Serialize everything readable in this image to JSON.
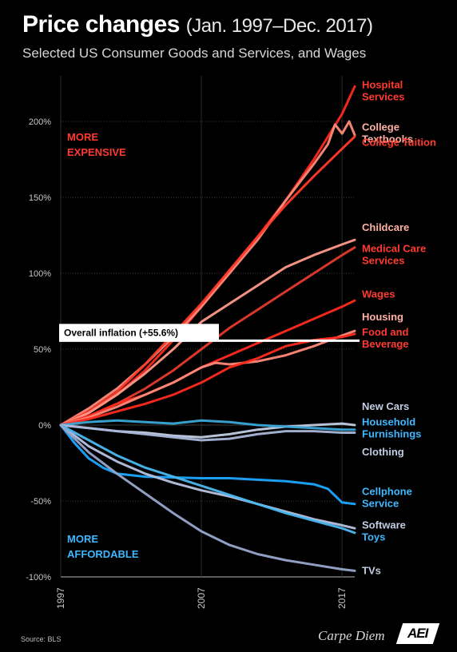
{
  "header": {
    "title": "Price changes",
    "title_range": "(Jan. 1997–Dec. 2017)",
    "subtitle": "Selected US Consumer Goods and Services, and Wages"
  },
  "footer": {
    "source": "Source:  BLS",
    "brand": "Carpe Diem",
    "logo_text": "AEI"
  },
  "colors": {
    "background": "#000000",
    "expensive_label": "#ff3b2f",
    "affordable_label": "#3fb8ff",
    "inflation_line": "#ffffff"
  },
  "chart_data": {
    "type": "line",
    "title": "Price changes (Jan. 1997–Dec. 2017)",
    "subtitle": "Selected US Consumer Goods and Services, and Wages",
    "xlabel": "",
    "ylabel": "",
    "xlim": [
      1997,
      2017.9
    ],
    "ylim": [
      -100,
      230
    ],
    "x_ticks": [
      1997,
      2007,
      2017
    ],
    "x_tick_labels": [
      "1997",
      "2007",
      "2017"
    ],
    "y_ticks": [
      -100,
      -50,
      0,
      50,
      100,
      150,
      200
    ],
    "y_tick_labels": [
      "-100%",
      "-50%",
      "0%",
      "50%",
      "100%",
      "150%",
      "200%"
    ],
    "grid": true,
    "annotations": {
      "more_expensive": [
        "MORE",
        "EXPENSIVE"
      ],
      "more_affordable": [
        "MORE",
        "AFFORDABLE"
      ]
    },
    "reference_line": {
      "label": "Overall inflation (+55.6%)",
      "value": 55.6
    },
    "series": [
      {
        "name": "Hospital Services",
        "label_lines": [
          "Hospital",
          "Services"
        ],
        "color": "#ff2a1f",
        "label_color": "#ff3b2f",
        "label_at": 220,
        "x": [
          1997,
          1999,
          2001,
          2003,
          2005,
          2007,
          2009,
          2011,
          2013,
          2015,
          2016,
          2017,
          2017.9
        ],
        "values": [
          0,
          8,
          20,
          36,
          56,
          78,
          102,
          124,
          148,
          175,
          190,
          205,
          223
        ]
      },
      {
        "name": "College Textbooks",
        "label_lines": [
          "College",
          "Textbooks"
        ],
        "color": "#ff8a7a",
        "label_color": "#ffb2a4",
        "label_at": 192,
        "x": [
          1997,
          1999,
          2001,
          2003,
          2005,
          2007,
          2009,
          2011,
          2013,
          2015,
          2016,
          2016.5,
          2017,
          2017.5,
          2017.9
        ],
        "values": [
          0,
          11,
          24,
          40,
          58,
          78,
          100,
          122,
          148,
          172,
          185,
          198,
          192,
          200,
          191
        ]
      },
      {
        "name": "College Tuition",
        "label_lines": [
          "College Tuition"
        ],
        "color": "#ff3a2a",
        "label_color": "#ff3b2f",
        "label_at": 186,
        "x": [
          1997,
          1999,
          2001,
          2003,
          2005,
          2007,
          2009,
          2011,
          2013,
          2015,
          2017,
          2017.9
        ],
        "values": [
          0,
          9,
          22,
          40,
          60,
          80,
          102,
          124,
          145,
          164,
          182,
          190
        ]
      },
      {
        "name": "Childcare",
        "label_lines": [
          "Childcare"
        ],
        "color": "#ff9a8a",
        "label_color": "#ffb2a4",
        "label_at": 130,
        "x": [
          1997,
          1999,
          2001,
          2003,
          2005,
          2007,
          2009,
          2011,
          2013,
          2015,
          2017,
          2017.9
        ],
        "values": [
          0,
          8,
          20,
          34,
          50,
          68,
          80,
          92,
          104,
          112,
          119,
          122
        ]
      },
      {
        "name": "Medical Care Services",
        "label_lines": [
          "Medical Care",
          "Services"
        ],
        "color": "#e53a2e",
        "label_color": "#ff3b2f",
        "label_at": 112,
        "x": [
          1997,
          1999,
          2001,
          2003,
          2005,
          2007,
          2009,
          2011,
          2013,
          2015,
          2017,
          2017.9
        ],
        "values": [
          0,
          6,
          14,
          24,
          36,
          50,
          64,
          76,
          88,
          100,
          112,
          117
        ]
      },
      {
        "name": "Wages",
        "label_lines": [
          "Wages"
        ],
        "color": "#ff2a1f",
        "label_color": "#ff3b2f",
        "label_at": 86,
        "x": [
          1997,
          1999,
          2001,
          2003,
          2005,
          2007,
          2009,
          2011,
          2013,
          2015,
          2017,
          2017.9
        ],
        "values": [
          0,
          6,
          14,
          20,
          28,
          38,
          46,
          54,
          62,
          70,
          78,
          82
        ]
      },
      {
        "name": "Housing",
        "label_lines": [
          "Housing"
        ],
        "color": "#ff8a7a",
        "label_color": "#ffb2a4",
        "label_at": 71,
        "x": [
          1997,
          1999,
          2001,
          2003,
          2005,
          2007,
          2008,
          2009,
          2011,
          2013,
          2015,
          2017,
          2017.9
        ],
        "values": [
          0,
          5,
          12,
          20,
          28,
          38,
          41,
          40,
          42,
          46,
          52,
          59,
          62
        ]
      },
      {
        "name": "Food and Beverage",
        "label_lines": [
          "Food and",
          "Beverage"
        ],
        "color": "#ff2a1f",
        "label_color": "#ff3b2f",
        "label_at": 57,
        "x": [
          1997,
          1999,
          2001,
          2003,
          2005,
          2007,
          2009,
          2011,
          2013,
          2015,
          2017,
          2017.9
        ],
        "values": [
          0,
          4,
          9,
          14,
          20,
          28,
          38,
          44,
          52,
          56,
          58,
          60
        ]
      },
      {
        "name": "New Cars",
        "label_lines": [
          "New Cars"
        ],
        "color": "#c2cde3",
        "label_color": "#c2cde3",
        "label_at": 12,
        "x": [
          1997,
          1999,
          2001,
          2003,
          2005,
          2007,
          2009,
          2011,
          2013,
          2015,
          2017,
          2017.9
        ],
        "values": [
          0,
          -2,
          -4,
          -5,
          -7,
          -8,
          -6,
          -3,
          -1,
          0,
          1,
          0
        ]
      },
      {
        "name": "Household Furnishings",
        "label_lines": [
          "Household",
          "Furnishings"
        ],
        "color": "#3aa8d8",
        "label_color": "#3fb8ff",
        "label_at": -2,
        "x": [
          1997,
          1999,
          2001,
          2003,
          2005,
          2007,
          2009,
          2011,
          2013,
          2015,
          2017,
          2017.9
        ],
        "values": [
          0,
          2,
          3,
          2,
          1,
          3,
          2,
          0,
          -1,
          -2,
          -3,
          -3
        ]
      },
      {
        "name": "Clothing",
        "label_lines": [
          "Clothing"
        ],
        "color": "#a9b6d8",
        "label_color": "#c2cde3",
        "label_at": -18,
        "x": [
          1997,
          1999,
          2001,
          2003,
          2005,
          2007,
          2009,
          2011,
          2013,
          2015,
          2017,
          2017.9
        ],
        "values": [
          0,
          -2,
          -4,
          -6,
          -8,
          -10,
          -9,
          -6,
          -4,
          -4,
          -5,
          -5
        ]
      },
      {
        "name": "Cellphone Service",
        "label_lines": [
          "Cellphone",
          "Service"
        ],
        "color": "#1ea6ff",
        "label_color": "#3fb8ff",
        "label_at": -48,
        "x": [
          1997,
          1998,
          1999,
          2000,
          2001,
          2003,
          2005,
          2007,
          2009,
          2011,
          2013,
          2015,
          2016,
          2017,
          2017.9
        ],
        "values": [
          0,
          -12,
          -22,
          -28,
          -32,
          -34,
          -34.5,
          -35,
          -35,
          -36,
          -37,
          -39,
          -42,
          -51,
          -52
        ]
      },
      {
        "name": "Software",
        "label_lines": [
          "Software"
        ],
        "color": "#b8c3e0",
        "label_color": "#c2cde3",
        "label_at": -66,
        "x": [
          1997,
          1999,
          2001,
          2003,
          2005,
          2007,
          2009,
          2011,
          2013,
          2015,
          2017,
          2017.9
        ],
        "values": [
          0,
          -14,
          -24,
          -32,
          -38,
          -43,
          -47,
          -52,
          -57,
          -62,
          -66,
          -68
        ]
      },
      {
        "name": "Toys",
        "label_lines": [
          "Toys"
        ],
        "color": "#4ab8f0",
        "label_color": "#3fb8ff",
        "label_at": -74,
        "x": [
          1997,
          1999,
          2001,
          2003,
          2005,
          2007,
          2009,
          2011,
          2013,
          2015,
          2017,
          2017.9
        ],
        "values": [
          0,
          -10,
          -20,
          -28,
          -34,
          -40,
          -46,
          -52,
          -58,
          -63,
          -68,
          -71
        ]
      },
      {
        "name": "TVs",
        "label_lines": [
          "TVs"
        ],
        "color": "#98a6cc",
        "label_color": "#c2cde3",
        "label_at": -96,
        "x": [
          1997,
          1999,
          2001,
          2003,
          2005,
          2007,
          2009,
          2011,
          2013,
          2015,
          2017,
          2017.9
        ],
        "values": [
          0,
          -18,
          -32,
          -45,
          -58,
          -70,
          -79,
          -85,
          -89,
          -92,
          -95,
          -96
        ]
      }
    ]
  }
}
